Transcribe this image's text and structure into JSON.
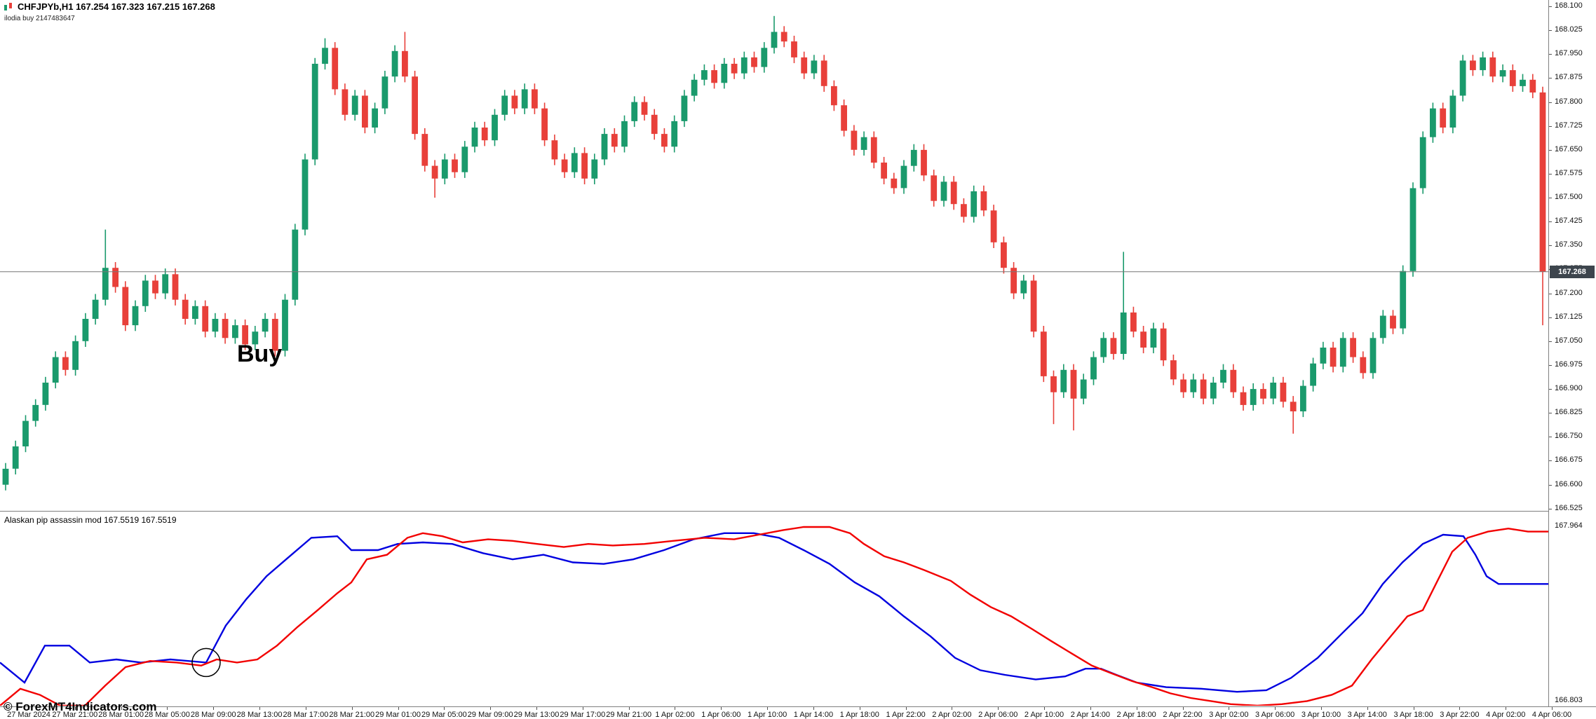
{
  "window": {
    "symbol_line": "CHFJPYb,H1 167.254 167.323 167.215 167.268",
    "sub_line": "ilodia buy 2147483647",
    "buy_label": "Buy",
    "indicator_label": "Alaskan pip assassin mod 167.5519 167.5519",
    "copyright": "© ForexMT4Indicators.com"
  },
  "colors": {
    "bull": "#1a9a6c",
    "bear": "#e8403a",
    "indicator_blue": "#0000e0",
    "indicator_red": "#f20000",
    "price_tag_bg": "#3d454d",
    "axis_text": "#111111"
  },
  "price_axis": {
    "labels": [
      "168.100",
      "168.025",
      "167.950",
      "167.875",
      "167.800",
      "167.725",
      "167.650",
      "167.575",
      "167.500",
      "167.425",
      "167.350",
      "167.275",
      "167.200",
      "167.125",
      "167.050",
      "166.975",
      "166.900",
      "166.825",
      "166.750",
      "166.675",
      "166.600",
      "166.525"
    ],
    "current_price": "167.268"
  },
  "indicator_axis": {
    "labels": [
      "167.964",
      "166.803"
    ]
  },
  "time_axis": {
    "labels": [
      "27 Mar 2024",
      "27 Mar 21:00",
      "28 Mar 01:00",
      "28 Mar 05:00",
      "28 Mar 09:00",
      "28 Mar 13:00",
      "28 Mar 17:00",
      "28 Mar 21:00",
      "29 Mar 01:00",
      "29 Mar 05:00",
      "29 Mar 09:00",
      "29 Mar 13:00",
      "29 Mar 17:00",
      "29 Mar 21:00",
      "1 Apr 02:00",
      "1 Apr 06:00",
      "1 Apr 10:00",
      "1 Apr 14:00",
      "1 Apr 18:00",
      "1 Apr 22:00",
      "2 Apr 02:00",
      "2 Apr 06:00",
      "2 Apr 10:00",
      "2 Apr 14:00",
      "2 Apr 18:00",
      "2 Apr 22:00",
      "3 Apr 02:00",
      "3 Apr 06:00",
      "3 Apr 10:00",
      "3 Apr 14:00",
      "3 Apr 18:00",
      "3 Apr 22:00",
      "4 Apr 02:00",
      "4 Apr 06:00"
    ]
  },
  "chart_data": [
    {
      "type": "candlestick",
      "title": "CHFJPYb,H1",
      "symbol": "CHFJPYb",
      "timeframe": "H1",
      "ohlc_display": {
        "open": 167.254,
        "high": 167.323,
        "low": 167.215,
        "close": 167.268
      },
      "y_range": [
        166.52,
        168.12
      ],
      "current_price": 167.268,
      "first_open": 166.6,
      "default_wick": 0.018,
      "closes": [
        166.65,
        166.72,
        166.8,
        166.85,
        166.92,
        167.0,
        166.96,
        167.05,
        167.12,
        167.18,
        167.28,
        167.22,
        167.1,
        167.16,
        167.24,
        167.2,
        167.26,
        167.18,
        167.12,
        167.16,
        167.08,
        167.12,
        167.06,
        167.1,
        167.04,
        167.08,
        167.12,
        167.02,
        167.18,
        167.4,
        167.62,
        167.92,
        167.97,
        167.84,
        167.76,
        167.82,
        167.72,
        167.78,
        167.88,
        167.96,
        167.88,
        167.7,
        167.6,
        167.56,
        167.62,
        167.58,
        167.66,
        167.72,
        167.68,
        167.76,
        167.82,
        167.78,
        167.84,
        167.78,
        167.68,
        167.62,
        167.58,
        167.64,
        167.56,
        167.62,
        167.7,
        167.66,
        167.74,
        167.8,
        167.76,
        167.7,
        167.66,
        167.74,
        167.82,
        167.87,
        167.9,
        167.86,
        167.92,
        167.89,
        167.94,
        167.91,
        167.97,
        168.02,
        167.99,
        167.94,
        167.89,
        167.93,
        167.85,
        167.79,
        167.71,
        167.65,
        167.69,
        167.61,
        167.56,
        167.53,
        167.6,
        167.65,
        167.57,
        167.49,
        167.55,
        167.48,
        167.44,
        167.52,
        167.46,
        167.36,
        167.28,
        167.2,
        167.24,
        167.08,
        166.94,
        166.89,
        166.96,
        166.87,
        166.93,
        167.0,
        167.06,
        167.01,
        167.14,
        167.08,
        167.03,
        167.09,
        166.99,
        166.93,
        166.89,
        166.93,
        166.87,
        166.92,
        166.96,
        166.89,
        166.85,
        166.9,
        166.87,
        166.92,
        166.86,
        166.83,
        166.91,
        166.98,
        167.03,
        166.97,
        167.06,
        167.0,
        166.95,
        167.06,
        167.13,
        167.09,
        167.27,
        167.53,
        167.69,
        167.78,
        167.72,
        167.82,
        167.93,
        167.9,
        167.94,
        167.88,
        167.9,
        167.85,
        167.87,
        167.83,
        167.268
      ],
      "wick_overrides": {
        "10": {
          "high": 167.4
        },
        "32": {
          "high": 168.0
        },
        "40": {
          "high": 168.02
        },
        "43": {
          "low": 167.5
        },
        "77": {
          "high": 168.07
        },
        "105": {
          "low": 166.79
        },
        "107": {
          "low": 166.77
        },
        "112": {
          "high": 167.33
        },
        "129": {
          "low": 166.76
        },
        "154": {
          "low": 167.1
        }
      },
      "annotations": [
        {
          "type": "text",
          "label": "Buy",
          "x_frac": 0.154,
          "price": 167.03
        }
      ]
    },
    {
      "type": "line",
      "title": "Alaskan pip assassin mod",
      "values_display": [
        167.5519,
        167.5519
      ],
      "y_range": [
        166.8,
        168.06
      ],
      "axis_marks": [
        167.964,
        166.803
      ],
      "series": [
        {
          "name": "blue",
          "color": "#0000e0",
          "points": [
            [
              0,
              167.08
            ],
            [
              0.016,
              166.95
            ],
            [
              0.029,
              167.19
            ],
            [
              0.045,
              167.19
            ],
            [
              0.058,
              167.08
            ],
            [
              0.075,
              167.1
            ],
            [
              0.091,
              167.08
            ],
            [
              0.11,
              167.1
            ],
            [
              0.133,
              167.08
            ],
            [
              0.146,
              167.32
            ],
            [
              0.159,
              167.49
            ],
            [
              0.172,
              167.64
            ],
            [
              0.185,
              167.75
            ],
            [
              0.201,
              167.89
            ],
            [
              0.218,
              167.9
            ],
            [
              0.227,
              167.81
            ],
            [
              0.244,
              167.81
            ],
            [
              0.257,
              167.85
            ],
            [
              0.273,
              167.86
            ],
            [
              0.292,
              167.85
            ],
            [
              0.312,
              167.79
            ],
            [
              0.331,
              167.75
            ],
            [
              0.351,
              167.78
            ],
            [
              0.37,
              167.73
            ],
            [
              0.39,
              167.72
            ],
            [
              0.409,
              167.75
            ],
            [
              0.429,
              167.81
            ],
            [
              0.448,
              167.88
            ],
            [
              0.468,
              167.92
            ],
            [
              0.487,
              167.92
            ],
            [
              0.503,
              167.89
            ],
            [
              0.519,
              167.81
            ],
            [
              0.536,
              167.72
            ],
            [
              0.552,
              167.6
            ],
            [
              0.568,
              167.51
            ],
            [
              0.584,
              167.38
            ],
            [
              0.601,
              167.25
            ],
            [
              0.617,
              167.11
            ],
            [
              0.633,
              167.03
            ],
            [
              0.649,
              167.0
            ],
            [
              0.669,
              166.97
            ],
            [
              0.688,
              166.99
            ],
            [
              0.701,
              167.04
            ],
            [
              0.711,
              167.04
            ],
            [
              0.721,
              167.0
            ],
            [
              0.734,
              166.95
            ],
            [
              0.753,
              166.92
            ],
            [
              0.776,
              166.91
            ],
            [
              0.799,
              166.89
            ],
            [
              0.818,
              166.9
            ],
            [
              0.834,
              166.98
            ],
            [
              0.851,
              167.11
            ],
            [
              0.867,
              167.27
            ],
            [
              0.88,
              167.4
            ],
            [
              0.893,
              167.59
            ],
            [
              0.906,
              167.73
            ],
            [
              0.919,
              167.85
            ],
            [
              0.932,
              167.91
            ],
            [
              0.945,
              167.9
            ],
            [
              0.953,
              167.78
            ],
            [
              0.96,
              167.64
            ],
            [
              0.968,
              167.59
            ],
            [
              0.987,
              167.59
            ],
            [
              1,
              167.59
            ]
          ]
        },
        {
          "name": "red",
          "color": "#f20000",
          "points": [
            [
              0,
              166.8
            ],
            [
              0.013,
              166.91
            ],
            [
              0.026,
              166.87
            ],
            [
              0.039,
              166.8
            ],
            [
              0.055,
              166.8
            ],
            [
              0.068,
              166.93
            ],
            [
              0.081,
              167.05
            ],
            [
              0.097,
              167.09
            ],
            [
              0.114,
              167.08
            ],
            [
              0.13,
              167.06
            ],
            [
              0.14,
              167.1
            ],
            [
              0.153,
              167.08
            ],
            [
              0.166,
              167.1
            ],
            [
              0.179,
              167.19
            ],
            [
              0.192,
              167.31
            ],
            [
              0.205,
              167.42
            ],
            [
              0.218,
              167.53
            ],
            [
              0.227,
              167.6
            ],
            [
              0.237,
              167.75
            ],
            [
              0.25,
              167.78
            ],
            [
              0.263,
              167.89
            ],
            [
              0.273,
              167.92
            ],
            [
              0.286,
              167.9
            ],
            [
              0.299,
              167.86
            ],
            [
              0.315,
              167.88
            ],
            [
              0.331,
              167.87
            ],
            [
              0.347,
              167.85
            ],
            [
              0.364,
              167.83
            ],
            [
              0.38,
              167.85
            ],
            [
              0.396,
              167.84
            ],
            [
              0.416,
              167.85
            ],
            [
              0.435,
              167.87
            ],
            [
              0.455,
              167.89
            ],
            [
              0.474,
              167.88
            ],
            [
              0.49,
              167.91
            ],
            [
              0.506,
              167.94
            ],
            [
              0.519,
              167.96
            ],
            [
              0.536,
              167.96
            ],
            [
              0.549,
              167.92
            ],
            [
              0.558,
              167.85
            ],
            [
              0.571,
              167.77
            ],
            [
              0.584,
              167.73
            ],
            [
              0.597,
              167.68
            ],
            [
              0.614,
              167.61
            ],
            [
              0.627,
              167.52
            ],
            [
              0.64,
              167.44
            ],
            [
              0.653,
              167.38
            ],
            [
              0.666,
              167.3
            ],
            [
              0.679,
              167.22
            ],
            [
              0.692,
              167.14
            ],
            [
              0.705,
              167.06
            ],
            [
              0.718,
              167.01
            ],
            [
              0.731,
              166.96
            ],
            [
              0.744,
              166.92
            ],
            [
              0.756,
              166.88
            ],
            [
              0.769,
              166.85
            ],
            [
              0.782,
              166.83
            ],
            [
              0.795,
              166.81
            ],
            [
              0.812,
              166.8
            ],
            [
              0.828,
              166.81
            ],
            [
              0.844,
              166.83
            ],
            [
              0.86,
              166.87
            ],
            [
              0.873,
              166.93
            ],
            [
              0.886,
              167.1
            ],
            [
              0.899,
              167.26
            ],
            [
              0.909,
              167.38
            ],
            [
              0.919,
              167.42
            ],
            [
              0.929,
              167.62
            ],
            [
              0.938,
              167.8
            ],
            [
              0.948,
              167.89
            ],
            [
              0.961,
              167.93
            ],
            [
              0.974,
              167.95
            ],
            [
              0.987,
              167.93
            ],
            [
              1,
              167.93
            ]
          ]
        }
      ],
      "annotations": [
        {
          "type": "circle",
          "x_frac": 0.133,
          "value": 167.08
        }
      ]
    }
  ]
}
